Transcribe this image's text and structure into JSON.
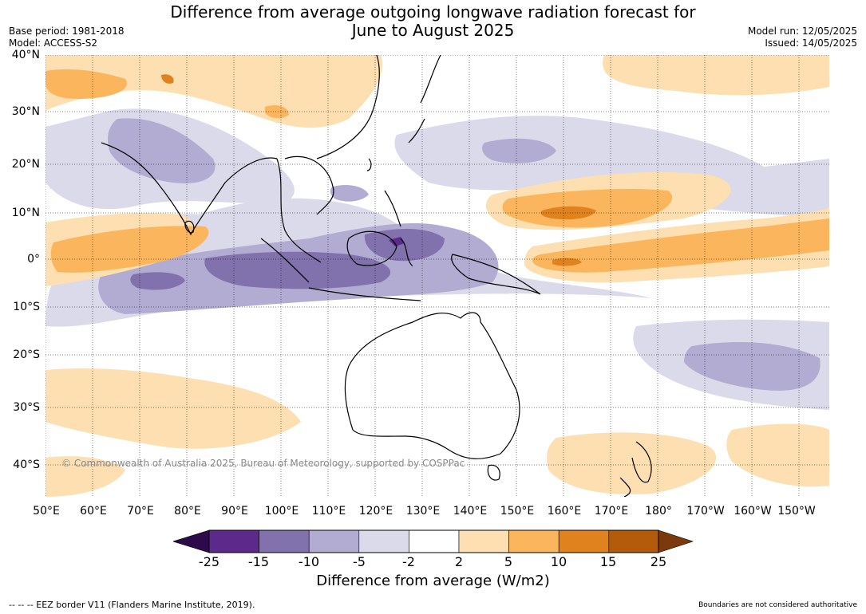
{
  "title": {
    "line1": "Difference from average outgoing longwave radiation forecast for",
    "line2": "June to August 2025"
  },
  "meta_left": {
    "base_period": "Base period: 1981-2018",
    "model": "Model: ACCESS-S2"
  },
  "meta_right": {
    "model_run": "Model run: 12/05/2025",
    "issued": "Issued: 14/05/2025"
  },
  "lat_labels": [
    "40°N",
    "30°N",
    "20°N",
    "10°N",
    "0°",
    "10°S",
    "20°S",
    "30°S",
    "40°S"
  ],
  "lon_labels": [
    "50°E",
    "60°E",
    "70°E",
    "80°E",
    "90°E",
    "100°E",
    "110°E",
    "120°E",
    "130°E",
    "140°E",
    "150°E",
    "160°E",
    "170°E",
    "180°",
    "170°W",
    "160°W",
    "150°W"
  ],
  "copyright": "© Commonwealth of Australia 2025, Bureau of Meteorology, supported by COSPPac",
  "colorbar": {
    "labels": [
      "-25",
      "-15",
      "-10",
      "-5",
      "-2",
      "2",
      "5",
      "10",
      "15",
      "25"
    ],
    "colors": [
      "#2d0a4a",
      "#5b2a8a",
      "#8171ac",
      "#b3acd2",
      "#dadaea",
      "#ffffff",
      "#fedfb1",
      "#fbb55d",
      "#e0821d",
      "#b35a0b",
      "#7a3a0c"
    ],
    "title": "Difference from average (W/m2)"
  },
  "eez_note": "--  --  -- EEZ border V11 (Flanders Marine Institute, 2019).",
  "boundary_note": "Boundaries are not considered authoritative"
}
